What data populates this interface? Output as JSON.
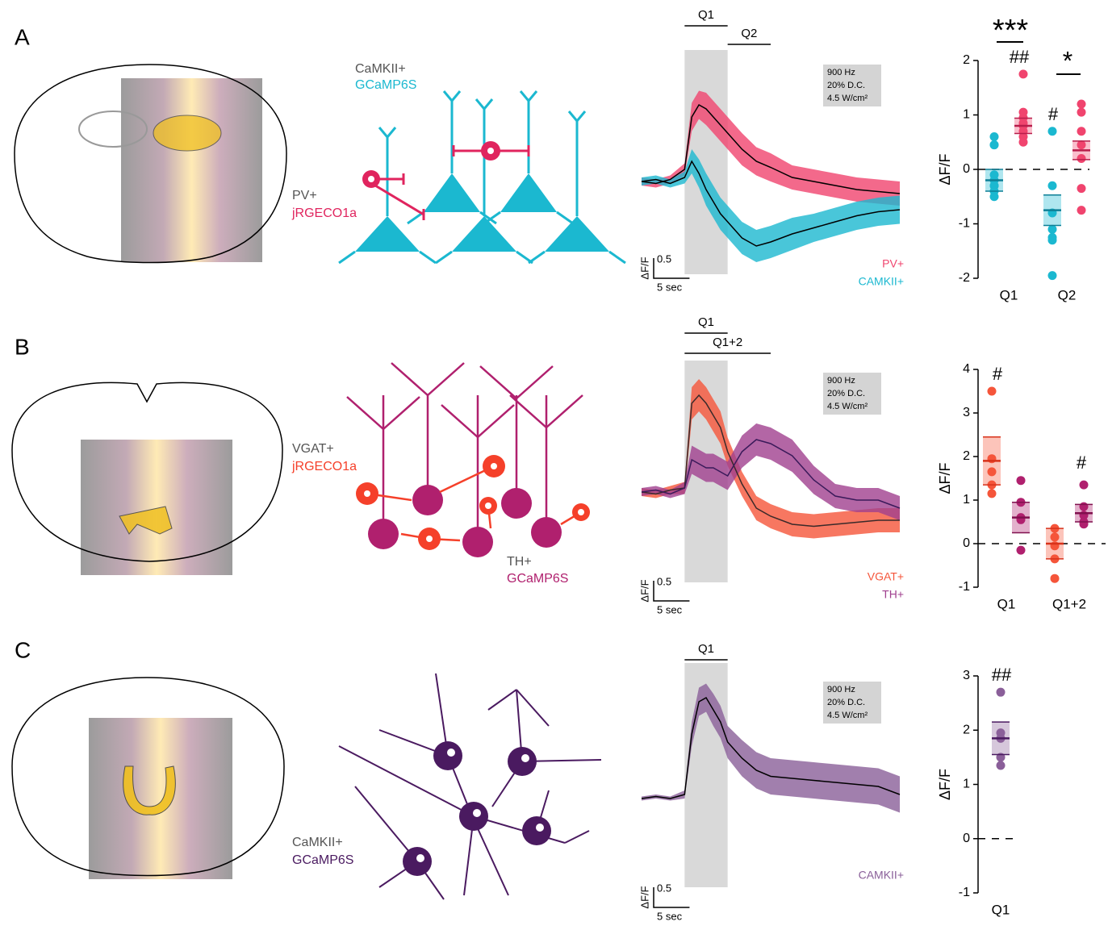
{
  "panels": [
    {
      "label": "A",
      "texts": [
        "CaMKII+",
        "GCaMP6S",
        "PV+",
        "jRGECO1a"
      ]
    },
    {
      "label": "B",
      "texts": [
        "VGAT+",
        "jRGECO1a",
        "TH+",
        "GCaMP6S"
      ]
    },
    {
      "label": "C",
      "texts": [
        "CaMKII+",
        "GCaMP6S"
      ]
    }
  ],
  "chart_data": [
    {
      "type": "line",
      "x": [
        -6,
        -4,
        -2,
        0,
        1,
        2,
        3,
        4,
        5,
        6,
        8,
        10,
        12,
        15,
        18,
        21,
        24,
        27,
        30
      ],
      "xlim": [
        -6,
        30
      ],
      "ylim": [
        -2.4,
        2.5
      ],
      "stimulus": [
        0,
        6
      ],
      "epochs": [
        {
          "label": "Q1",
          "range": [
            0,
            6
          ]
        },
        {
          "label": "Q2",
          "range": [
            6,
            12
          ]
        }
      ],
      "stim_box": [
        "900 Hz",
        "20% D.C.",
        "4.5 W/cm²"
      ],
      "y_scalebar": 0.5,
      "y_scalebar_label": "ΔF/F",
      "x_scalebar": {
        "value": 5,
        "label": "5 sec"
      },
      "series": [
        {
          "name": "PV+",
          "color": "#f0446e",
          "mean_color": "#000000",
          "values": [
            0,
            -0.05,
            0.05,
            0.3,
            1.6,
            1.9,
            1.8,
            1.6,
            1.4,
            1.2,
            0.8,
            0.5,
            0.35,
            0.1,
            0,
            -0.1,
            -0.2,
            -0.25,
            -0.3
          ],
          "error": [
            0.1,
            0.1,
            0.1,
            0.15,
            0.35,
            0.35,
            0.4,
            0.4,
            0.4,
            0.4,
            0.4,
            0.35,
            0.35,
            0.3,
            0.3,
            0.3,
            0.3,
            0.3,
            0.3
          ]
        },
        {
          "name": "CAMKII+",
          "color": "#1bb8d0",
          "mean_color": "#000000",
          "values": [
            0,
            0.05,
            -0.05,
            0.1,
            0.5,
            0.2,
            -0.2,
            -0.5,
            -0.8,
            -1.0,
            -1.4,
            -1.6,
            -1.5,
            -1.3,
            -1.15,
            -1.0,
            -0.85,
            -0.75,
            -0.7
          ],
          "error": [
            0.1,
            0.1,
            0.1,
            0.15,
            0.3,
            0.35,
            0.4,
            0.4,
            0.4,
            0.4,
            0.4,
            0.4,
            0.4,
            0.4,
            0.35,
            0.35,
            0.35,
            0.35,
            0.35
          ]
        }
      ]
    },
    {
      "type": "strip",
      "categories": [
        "Q1",
        "Q2"
      ],
      "ylim": [
        -2,
        2
      ],
      "yticks": [
        -2,
        -1,
        0,
        1,
        2
      ],
      "ylabel": "ΔF/F",
      "annotations": [
        "***",
        "##",
        "*",
        "#"
      ],
      "series": [
        {
          "color": "#1bb8d0",
          "mean_color": "#0d7f96",
          "points": [
            [
              0.6,
              0.45,
              0.45,
              -0.1,
              -0.2,
              -0.3,
              -0.3,
              -0.4,
              -0.5
            ],
            [
              0.7,
              -0.3,
              -0.8,
              -1.1,
              -1.25,
              -1.3,
              -1.95
            ]
          ],
          "means": [
            -0.2,
            -0.75
          ],
          "sems": [
            0.2,
            0.28
          ]
        },
        {
          "color": "#f0446e",
          "mean_color": "#b81c4a",
          "points": [
            [
              1.75,
              1.05,
              0.95,
              0.85,
              0.8,
              0.7,
              0.6,
              0.5
            ],
            [
              1.2,
              1.05,
              0.7,
              0.45,
              0.2,
              -0.35,
              -0.75
            ]
          ],
          "means": [
            0.8,
            0.35
          ],
          "sems": [
            0.14,
            0.17
          ]
        }
      ]
    },
    {
      "type": "line",
      "x": [
        -6,
        -4,
        -2,
        0,
        1,
        2,
        3,
        4,
        5,
        6,
        8,
        10,
        12,
        15,
        18,
        21,
        24,
        27,
        30
      ],
      "xlim": [
        -6,
        30
      ],
      "ylim": [
        -2.7,
        3.3
      ],
      "stimulus": [
        0,
        6
      ],
      "epochs": [
        {
          "label": "Q1",
          "range": [
            0,
            6
          ]
        },
        {
          "label": "Q1+2",
          "range": [
            0,
            12
          ]
        }
      ],
      "stim_box": [
        "900 Hz",
        "20% D.C.",
        "4.5 W/cm²"
      ],
      "y_scalebar": 0.5,
      "y_scalebar_label": "ΔF/F",
      "x_scalebar": {
        "value": 5,
        "label": "5 sec"
      },
      "series": [
        {
          "name": "VGAT+",
          "color": "#f5553a",
          "mean_color": "#3a2a2a",
          "values": [
            0,
            -0.05,
            0.05,
            0.1,
            2.2,
            2.4,
            2.2,
            1.9,
            1.6,
            1.0,
            0.2,
            -0.4,
            -0.6,
            -0.8,
            -0.85,
            -0.8,
            -0.75,
            -0.7,
            -0.7
          ],
          "error": [
            0.1,
            0.1,
            0.1,
            0.15,
            0.4,
            0.4,
            0.4,
            0.4,
            0.4,
            0.35,
            0.3,
            0.3,
            0.3,
            0.3,
            0.3,
            0.3,
            0.3,
            0.3,
            0.3
          ]
        },
        {
          "name": "TH+",
          "color": "#a0408f",
          "mean_color": "#3a1a5a",
          "values": [
            0,
            0.05,
            -0.05,
            0.1,
            0.8,
            0.7,
            0.6,
            0.6,
            0.5,
            0.4,
            1.0,
            1.3,
            1.2,
            0.9,
            0.3,
            -0.1,
            -0.2,
            -0.2,
            -0.4
          ],
          "error": [
            0.1,
            0.1,
            0.1,
            0.15,
            0.35,
            0.35,
            0.35,
            0.35,
            0.35,
            0.35,
            0.4,
            0.4,
            0.4,
            0.4,
            0.35,
            0.3,
            0.3,
            0.3,
            0.3
          ]
        }
      ]
    },
    {
      "type": "strip",
      "categories": [
        "Q1",
        "Q1+2"
      ],
      "ylim": [
        -1,
        4
      ],
      "yticks": [
        -1,
        0,
        1,
        2,
        3,
        4
      ],
      "ylabel": "ΔF/F",
      "annotations": [
        "#",
        "#"
      ],
      "series": [
        {
          "color": "#f5553a",
          "mean_color": "#d8321a",
          "points": [
            [
              3.5,
              1.95,
              1.65,
              1.35,
              1.15
            ],
            [
              0.35,
              0.15,
              -0.05,
              -0.35,
              -0.8
            ]
          ],
          "means": [
            1.9,
            0.0
          ],
          "sems": [
            0.55,
            0.35
          ]
        },
        {
          "color": "#b0206e",
          "mean_color": "#80104e",
          "points": [
            [
              1.45,
              0.95,
              0.6,
              0.55,
              -0.15
            ],
            [
              1.35,
              0.85,
              0.65,
              0.5,
              0.45
            ]
          ],
          "means": [
            0.6,
            0.7
          ],
          "sems": [
            0.35,
            0.2
          ]
        }
      ]
    },
    {
      "type": "line",
      "x": [
        -6,
        -4,
        -2,
        0,
        1,
        2,
        3,
        4,
        5,
        6,
        8,
        10,
        12,
        15,
        18,
        21,
        24,
        27,
        30
      ],
      "xlim": [
        -6,
        30
      ],
      "ylim": [
        -2.7,
        3.4
      ],
      "stimulus": [
        0,
        6
      ],
      "epochs": [
        {
          "label": "Q1",
          "range": [
            0,
            6
          ]
        }
      ],
      "stim_box": [
        "900 Hz",
        "20% D.C.",
        "4.5 W/cm²"
      ],
      "y_scalebar": 0.5,
      "y_scalebar_label": "ΔF/F",
      "x_scalebar": {
        "value": 5,
        "label": "5 sec"
      },
      "series": [
        {
          "name": "CAMKII+",
          "color": "#8a5f99",
          "mean_color": "#000000",
          "values": [
            0,
            0.05,
            0,
            0.1,
            1.6,
            2.4,
            2.5,
            2.2,
            1.9,
            1.4,
            1.0,
            0.7,
            0.55,
            0.5,
            0.45,
            0.4,
            0.35,
            0.3,
            0.1
          ],
          "error": [
            0.05,
            0.05,
            0.05,
            0.1,
            0.3,
            0.35,
            0.35,
            0.4,
            0.4,
            0.4,
            0.45,
            0.45,
            0.45,
            0.45,
            0.45,
            0.45,
            0.45,
            0.45,
            0.45
          ]
        }
      ]
    },
    {
      "type": "strip",
      "categories": [
        "Q1"
      ],
      "ylim": [
        -1,
        3
      ],
      "yticks": [
        -1,
        0,
        1,
        2,
        3
      ],
      "ylabel": "ΔF/F",
      "annotations": [
        "##"
      ],
      "series": [
        {
          "color": "#8a5f99",
          "mean_color": "#4a1a60",
          "points": [
            [
              2.7,
              1.95,
              1.85,
              1.5,
              1.35
            ]
          ],
          "means": [
            1.85
          ],
          "sems": [
            0.3
          ]
        }
      ]
    }
  ]
}
